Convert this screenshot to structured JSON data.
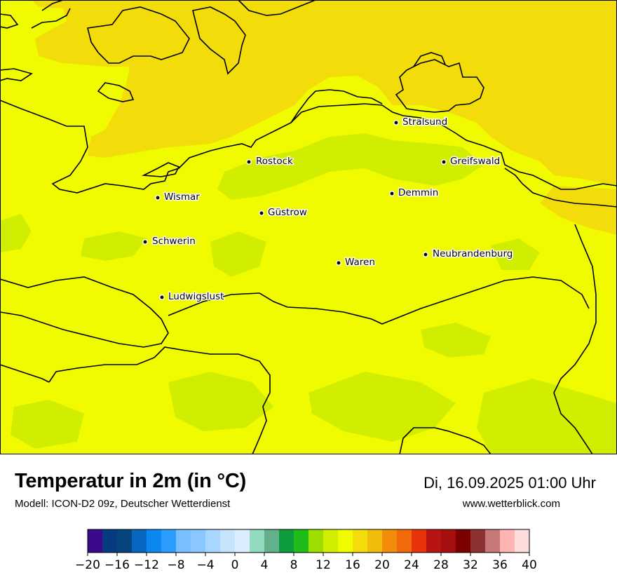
{
  "title": "Temperatur in 2m (in °C)",
  "subtitle": "Modell: ICON-D2 09z, Deutscher Wetterdienst",
  "datetime": "Di, 16.09.2025 01:00 Uhr",
  "website": "www.wetterblick.com",
  "cities": [
    {
      "name": "Stralsund"
    },
    {
      "name": "Rostock"
    },
    {
      "name": "Greifswald"
    },
    {
      "name": "Wismar"
    },
    {
      "name": "Demmin"
    },
    {
      "name": "Güstrow"
    },
    {
      "name": "Schwerin"
    },
    {
      "name": "Neubrandenburg"
    },
    {
      "name": "Waren"
    },
    {
      "name": "Ludwigslust"
    }
  ],
  "colors": {
    "t14_16": "#f0fb00",
    "t12_14": "#d2ee00",
    "t16_18": "#f2dc0a",
    "border": "#000000"
  },
  "colorbar": {
    "colors": [
      "#3b0a8c",
      "#063b82",
      "#06447e",
      "#0766c0",
      "#0a88f0",
      "#2d9cff",
      "#79bfff",
      "#8ac6ff",
      "#a9d6ff",
      "#c7e4ff",
      "#dcedff",
      "#93dbbe",
      "#62b08c",
      "#0d9b3c",
      "#20bc19",
      "#9edd00",
      "#d2ee00",
      "#f0fb00",
      "#f2dc0a",
      "#f2bd0a",
      "#f28c0a",
      "#f2690a",
      "#e6330a",
      "#b81414",
      "#a50f0f",
      "#7d0000",
      "#8c3232",
      "#c87878",
      "#ffb4b4",
      "#ffdcdc"
    ],
    "tick_labels": [
      "−20",
      "−16",
      "−12",
      "−8",
      "−4",
      "0",
      "4",
      "8",
      "12",
      "16",
      "20",
      "24",
      "28",
      "32",
      "36",
      "40"
    ]
  }
}
